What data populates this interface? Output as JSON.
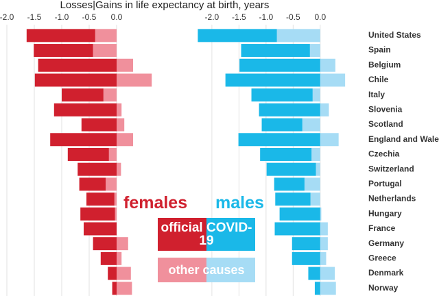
{
  "chart_data": {
    "type": "bar",
    "orientation": "horizontal",
    "title": "Losses|Gains in life expectancy at birth, years",
    "categories": [
      "United States",
      "Spain",
      "Belgium",
      "Chile",
      "Italy",
      "Slovenia",
      "Scotland",
      "England and Wales",
      "Czechia",
      "Switzerland",
      "Portugal",
      "Netherlands",
      "Hungary",
      "France",
      "Germany",
      "Greece",
      "Denmark",
      "Norway"
    ],
    "series_names": [
      "official COVID-19",
      "other causes"
    ],
    "xlim": [
      -2.1,
      0.8
    ],
    "xticks": [
      {
        "value": -2,
        "label": "-2.0"
      },
      -1.5,
      {
        "value": -1,
        "label": "-1.0"
      },
      -0.5,
      {
        "value": 0,
        "label": "0.0"
      }
    ],
    "grid": true,
    "panels": [
      {
        "name": "females",
        "color": "#d0202e",
        "series": [
          {
            "color": "#d0202e",
            "values": [
              -1.25,
              -1.08,
              -1.43,
              -1.49,
              -0.76,
              -1.14,
              -0.64,
              -1.21,
              -0.75,
              -0.71,
              -0.48,
              -0.51,
              -0.63,
              -0.6,
              -0.43,
              -0.29,
              -0.16,
              -0.08
            ]
          },
          {
            "color": "#f0909c",
            "values": [
              -0.39,
              -0.43,
              0.3,
              0.64,
              -0.24,
              0.09,
              0.14,
              0.3,
              -0.14,
              0.08,
              -0.2,
              -0.04,
              -0.03,
              0,
              0.21,
              0.09,
              0.26,
              0.28
            ]
          }
        ]
      },
      {
        "name": "males",
        "color": "#1ab8e8",
        "series": [
          {
            "color": "#1ab8e8",
            "values": [
              -1.46,
              -1.27,
              -1.49,
              -1.75,
              -1.13,
              -1.13,
              -0.75,
              -1.51,
              -0.95,
              -0.91,
              -0.56,
              -0.65,
              -0.75,
              -0.84,
              -0.52,
              -0.52,
              -0.22,
              -0.1
            ]
          },
          {
            "color": "#a6dcf5",
            "values": [
              -0.8,
              -0.19,
              0.28,
              0.46,
              -0.14,
              0.16,
              -0.33,
              0.34,
              -0.16,
              -0.08,
              -0.29,
              -0.18,
              0.02,
              0.14,
              0.14,
              0.11,
              0.27,
              0.29
            ]
          }
        ]
      }
    ]
  }
}
